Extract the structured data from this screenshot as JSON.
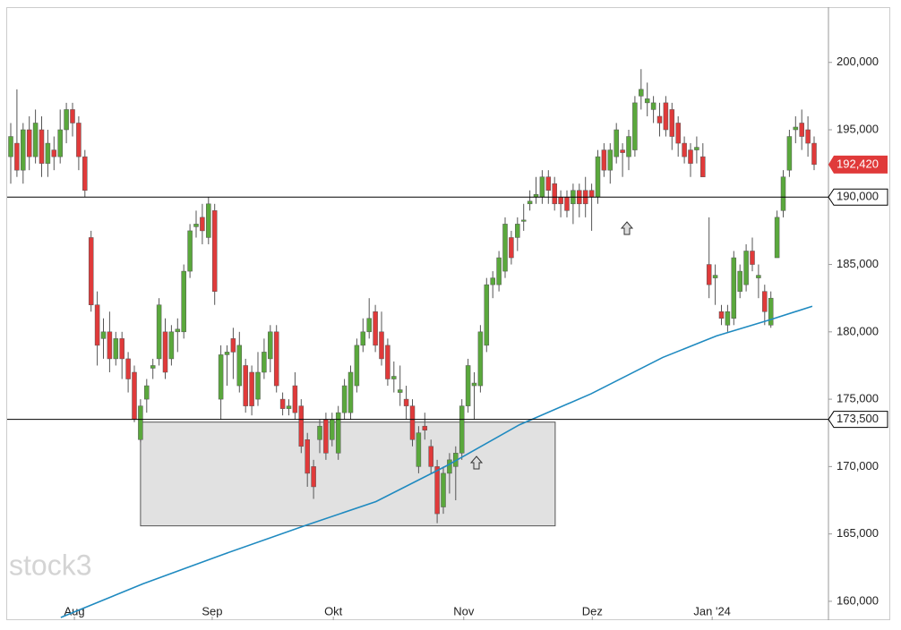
{
  "chart_data": {
    "type": "candlestick",
    "watermark": "stock3",
    "up_color": "#5aa83c",
    "down_color": "#e03a3a",
    "ma_color": "#1f8ac0",
    "zone_color": "#e1e1e1",
    "level_color": "#000000",
    "last_color": "#e03a3a",
    "ylim": [
      158600,
      204100
    ],
    "yticks": [
      {
        "value": 160000,
        "label": "160,000"
      },
      {
        "value": 165000,
        "label": "165,000"
      },
      {
        "value": 170000,
        "label": "170,000"
      },
      {
        "value": 175000,
        "label": "175,000"
      },
      {
        "value": 180000,
        "label": "180,000"
      },
      {
        "value": 185000,
        "label": "185,000"
      },
      {
        "value": 190000,
        "label": "190,000"
      },
      {
        "value": 195000,
        "label": "195,000"
      },
      {
        "value": 200000,
        "label": "200,000"
      }
    ],
    "xticks": [
      {
        "value": 10.3,
        "label": "Aug"
      },
      {
        "value": 32.6,
        "label": "Sep"
      },
      {
        "value": 52.2,
        "label": "Okt"
      },
      {
        "value": 73.3,
        "label": "Nov"
      },
      {
        "value": 94.1,
        "label": "Dez"
      },
      {
        "value": 113.5,
        "label": "Jan '24"
      }
    ],
    "levels": [
      {
        "value": 190000,
        "label": "190,000"
      },
      {
        "value": 173500,
        "label": "173,500"
      }
    ],
    "last": {
      "value": 192420,
      "label": "192,420"
    },
    "zone": {
      "start": 21.0,
      "end": 88.1,
      "low": 165600,
      "high": 173300
    },
    "ma": {
      "x": [
        8.1,
        21.4,
        34.5,
        47.5,
        59.1,
        70.7,
        82.3,
        93.9,
        105.5,
        114.2,
        122.9,
        129.7
      ],
      "values": [
        158800,
        161300,
        163500,
        165600,
        167400,
        170100,
        173100,
        175400,
        178100,
        179700,
        180900,
        181900
      ]
    },
    "open": [
      193000,
      194000,
      192000,
      195000,
      193000,
      195000,
      192500,
      193500,
      193000,
      195000,
      196500,
      195500,
      193000,
      187000,
      182000,
      179500,
      180000,
      178000,
      179500,
      178000,
      177000,
      172000,
      175000,
      177300,
      178000,
      180000,
      178000,
      180000,
      180000,
      184500,
      187800,
      188500,
      187000,
      189000,
      175000,
      178300,
      179500,
      176000,
      177500,
      177000,
      175000,
      177000,
      178000,
      180000,
      175000,
      174300,
      176000,
      174500,
      172000,
      170000,
      172000,
      173500,
      172000,
      171000,
      174000,
      174000,
      176000,
      179000,
      180000,
      181500,
      180000,
      179000,
      176500,
      175500,
      175000,
      174500,
      170000,
      173000,
      171500,
      170000,
      167000,
      169500,
      170000,
      171000,
      174500,
      176000,
      176000,
      179000,
      183500,
      183500,
      184500,
      187000,
      187000,
      188200,
      189500,
      190000,
      190000,
      191500,
      191000,
      190000,
      190000,
      189500,
      190500,
      190500,
      190500,
      190000,
      193500,
      192000,
      193000,
      193500,
      193000,
      193500,
      197500,
      197000,
      196500,
      196000,
      197000,
      196500,
      195500,
      194000,
      193500,
      193500,
      193000,
      185000,
      184000,
      181500,
      180500,
      181000,
      183000,
      183500,
      186000,
      184000,
      183000,
      180500,
      185500,
      189000,
      192000,
      195000,
      195500,
      195000,
      194000
    ],
    "high": [
      195500,
      198000,
      195500,
      196000,
      196500,
      196000,
      195000,
      194500,
      196500,
      197000,
      197000,
      196000,
      193500,
      187500,
      183000,
      181000,
      181500,
      180000,
      180000,
      178500,
      177500,
      175000,
      176500,
      178000,
      182500,
      181000,
      180500,
      181000,
      185000,
      188000,
      189000,
      189500,
      190000,
      189500,
      179000,
      179000,
      180300,
      180000,
      178000,
      177500,
      178500,
      179500,
      180500,
      180500,
      175500,
      175000,
      177000,
      175000,
      172500,
      170500,
      173500,
      174000,
      174000,
      174500,
      176500,
      177500,
      179500,
      181000,
      182500,
      182000,
      181500,
      179500,
      177800,
      177500,
      176000,
      175000,
      173000,
      174000,
      172000,
      170500,
      170000,
      171000,
      171500,
      175000,
      178000,
      177000,
      180500,
      184000,
      184500,
      186000,
      188500,
      187500,
      188500,
      189500,
      190500,
      191500,
      192000,
      192000,
      191500,
      190500,
      190500,
      191000,
      191000,
      191500,
      191000,
      193500,
      194000,
      194000,
      195500,
      194000,
      195000,
      197500,
      199500,
      198500,
      197500,
      197000,
      197500,
      197000,
      196000,
      194500,
      194000,
      194500,
      194000,
      188500,
      185000,
      182000,
      182000,
      186000,
      185000,
      186500,
      187000,
      185000,
      183500,
      183000,
      189000,
      192000,
      195000,
      196000,
      196500,
      196000,
      194500
    ],
    "low": [
      191000,
      191500,
      191000,
      192000,
      192500,
      191500,
      191500,
      192000,
      192500,
      194000,
      194500,
      192000,
      190000,
      181500,
      177500,
      178000,
      177000,
      177500,
      176500,
      175500,
      173300,
      171800,
      174000,
      176500,
      177500,
      176500,
      177500,
      178500,
      179500,
      184000,
      187000,
      186500,
      186500,
      182000,
      173500,
      176000,
      176500,
      175500,
      174000,
      173800,
      174500,
      176500,
      177000,
      175500,
      173800,
      173800,
      173500,
      171000,
      168500,
      167600,
      171000,
      170500,
      171500,
      170500,
      173500,
      173500,
      175500,
      178500,
      179500,
      178500,
      177500,
      176000,
      175500,
      174500,
      173500,
      171500,
      169500,
      172000,
      169500,
      165800,
      166500,
      168000,
      167500,
      170500,
      174000,
      173500,
      175500,
      178500,
      182500,
      183000,
      184000,
      185000,
      186000,
      187500,
      189000,
      189500,
      189500,
      189500,
      189000,
      188500,
      188500,
      188000,
      188500,
      188500,
      187500,
      189500,
      191500,
      191000,
      192500,
      191500,
      192000,
      193000,
      196500,
      196000,
      195500,
      194500,
      194500,
      193500,
      193000,
      192500,
      191500,
      192500,
      191500,
      182500,
      182000,
      180500,
      180000,
      180500,
      182500,
      183000,
      184500,
      182500,
      180500,
      180300,
      185500,
      188500,
      191500,
      194000,
      193500,
      193000,
      192000
    ],
    "close": [
      194500,
      192000,
      195000,
      193000,
      195500,
      192500,
      194000,
      193000,
      195000,
      196500,
      195500,
      193000,
      190500,
      182000,
      179000,
      180000,
      178000,
      179500,
      178000,
      176500,
      173500,
      174500,
      176000,
      177500,
      182000,
      177000,
      180000,
      180200,
      184500,
      187500,
      188000,
      187500,
      189500,
      183000,
      178300,
      178500,
      178500,
      179000,
      174500,
      174500,
      177000,
      178500,
      180000,
      176000,
      174300,
      174500,
      174000,
      171500,
      169500,
      168500,
      173000,
      171000,
      173500,
      174000,
      176000,
      177000,
      179000,
      180000,
      181000,
      179000,
      178000,
      176500,
      176700,
      175700,
      174500,
      172000,
      172500,
      172700,
      170000,
      166500,
      169500,
      170500,
      171000,
      174500,
      177500,
      176200,
      180000,
      183500,
      184000,
      185500,
      188000,
      185500,
      188000,
      188300,
      189700,
      190200,
      191500,
      190500,
      189500,
      189500,
      189000,
      190500,
      189500,
      189500,
      190000,
      193000,
      192000,
      193500,
      195000,
      193300,
      194500,
      197000,
      198000,
      197300,
      197000,
      195500,
      195000,
      194500,
      194000,
      193000,
      192500,
      193700,
      191500,
      183500,
      184200,
      181000,
      181500,
      185500,
      184500,
      186000,
      185000,
      184200,
      181500,
      182500,
      188500,
      191500,
      194500,
      195200,
      194500,
      194000,
      192420
    ]
  }
}
